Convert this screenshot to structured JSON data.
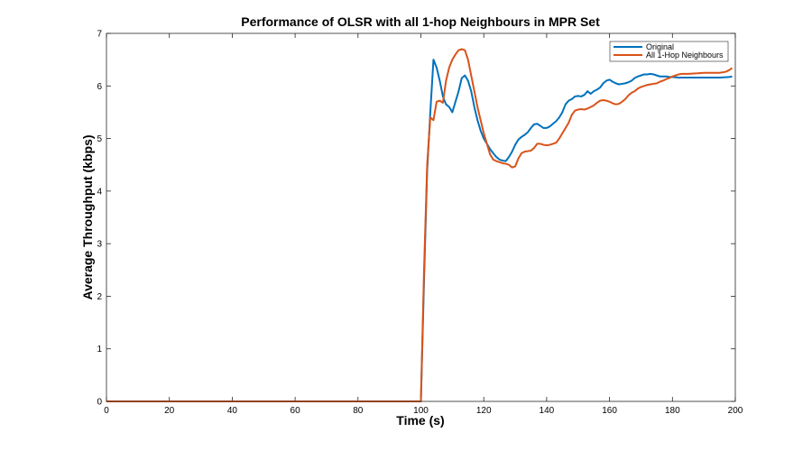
{
  "chart_data": {
    "type": "line",
    "title": "Performance of OLSR with all 1-hop Neighbours in MPR Set",
    "xlabel": "Time (s)",
    "ylabel": "Average Throughput (kbps)",
    "xlim": [
      0,
      200
    ],
    "ylim": [
      0,
      7
    ],
    "xticks": [
      0,
      20,
      40,
      60,
      80,
      100,
      120,
      140,
      160,
      180,
      200
    ],
    "yticks": [
      0,
      1,
      2,
      3,
      4,
      5,
      6,
      7
    ],
    "grid": false,
    "legend_position": "top-right",
    "series": [
      {
        "name": "Original",
        "color": "#0072BD",
        "points": [
          [
            0,
            0
          ],
          [
            100,
            0
          ],
          [
            101,
            2.3
          ],
          [
            102,
            4.4
          ],
          [
            103,
            5.5
          ],
          [
            104,
            6.5
          ],
          [
            105,
            6.35
          ],
          [
            106,
            6.1
          ],
          [
            107,
            5.8
          ],
          [
            108,
            5.65
          ],
          [
            109,
            5.6
          ],
          [
            110,
            5.5
          ],
          [
            111,
            5.7
          ],
          [
            112,
            5.9
          ],
          [
            113,
            6.15
          ],
          [
            114,
            6.2
          ],
          [
            115,
            6.1
          ],
          [
            116,
            5.9
          ],
          [
            117,
            5.6
          ],
          [
            118,
            5.35
          ],
          [
            119,
            5.15
          ],
          [
            120,
            5.0
          ],
          [
            121,
            4.9
          ],
          [
            122,
            4.8
          ],
          [
            123,
            4.72
          ],
          [
            124,
            4.65
          ],
          [
            125,
            4.6
          ],
          [
            126,
            4.58
          ],
          [
            127,
            4.57
          ],
          [
            128,
            4.65
          ],
          [
            129,
            4.75
          ],
          [
            130,
            4.88
          ],
          [
            131,
            4.98
          ],
          [
            132,
            5.03
          ],
          [
            133,
            5.07
          ],
          [
            134,
            5.12
          ],
          [
            135,
            5.2
          ],
          [
            136,
            5.27
          ],
          [
            137,
            5.28
          ],
          [
            138,
            5.24
          ],
          [
            139,
            5.2
          ],
          [
            140,
            5.2
          ],
          [
            141,
            5.23
          ],
          [
            142,
            5.28
          ],
          [
            143,
            5.33
          ],
          [
            144,
            5.4
          ],
          [
            145,
            5.5
          ],
          [
            146,
            5.65
          ],
          [
            147,
            5.72
          ],
          [
            148,
            5.75
          ],
          [
            149,
            5.8
          ],
          [
            150,
            5.81
          ],
          [
            151,
            5.8
          ],
          [
            152,
            5.83
          ],
          [
            153,
            5.9
          ],
          [
            154,
            5.85
          ],
          [
            155,
            5.9
          ],
          [
            156,
            5.93
          ],
          [
            157,
            5.97
          ],
          [
            158,
            6.05
          ],
          [
            159,
            6.1
          ],
          [
            160,
            6.12
          ],
          [
            161,
            6.08
          ],
          [
            162,
            6.05
          ],
          [
            163,
            6.03
          ],
          [
            164,
            6.04
          ],
          [
            165,
            6.05
          ],
          [
            166,
            6.07
          ],
          [
            167,
            6.1
          ],
          [
            168,
            6.15
          ],
          [
            169,
            6.18
          ],
          [
            170,
            6.2
          ],
          [
            171,
            6.22
          ],
          [
            172,
            6.22
          ],
          [
            173,
            6.23
          ],
          [
            174,
            6.22
          ],
          [
            175,
            6.2
          ],
          [
            176,
            6.18
          ],
          [
            177,
            6.18
          ],
          [
            178,
            6.18
          ],
          [
            179,
            6.17
          ],
          [
            180,
            6.17
          ],
          [
            182,
            6.16
          ],
          [
            185,
            6.16
          ],
          [
            190,
            6.16
          ],
          [
            195,
            6.16
          ],
          [
            198,
            6.17
          ],
          [
            199,
            6.18
          ]
        ]
      },
      {
        "name": "All 1-Hop Neighbours",
        "color": "#D95319",
        "points": [
          [
            0,
            0
          ],
          [
            100,
            0
          ],
          [
            101,
            2.5
          ],
          [
            102,
            4.5
          ],
          [
            103,
            5.4
          ],
          [
            104,
            5.35
          ],
          [
            105,
            5.7
          ],
          [
            106,
            5.72
          ],
          [
            107,
            5.68
          ],
          [
            108,
            6.1
          ],
          [
            109,
            6.35
          ],
          [
            110,
            6.5
          ],
          [
            111,
            6.6
          ],
          [
            112,
            6.68
          ],
          [
            113,
            6.7
          ],
          [
            114,
            6.68
          ],
          [
            115,
            6.5
          ],
          [
            116,
            6.2
          ],
          [
            117,
            5.9
          ],
          [
            118,
            5.6
          ],
          [
            119,
            5.35
          ],
          [
            120,
            5.1
          ],
          [
            121,
            4.9
          ],
          [
            122,
            4.7
          ],
          [
            123,
            4.6
          ],
          [
            124,
            4.57
          ],
          [
            125,
            4.55
          ],
          [
            126,
            4.53
          ],
          [
            127,
            4.52
          ],
          [
            128,
            4.5
          ],
          [
            129,
            4.45
          ],
          [
            130,
            4.47
          ],
          [
            131,
            4.62
          ],
          [
            132,
            4.72
          ],
          [
            133,
            4.75
          ],
          [
            134,
            4.76
          ],
          [
            135,
            4.77
          ],
          [
            136,
            4.82
          ],
          [
            137,
            4.9
          ],
          [
            138,
            4.9
          ],
          [
            139,
            4.88
          ],
          [
            140,
            4.87
          ],
          [
            141,
            4.88
          ],
          [
            142,
            4.9
          ],
          [
            143,
            4.92
          ],
          [
            144,
            5.0
          ],
          [
            145,
            5.1
          ],
          [
            146,
            5.2
          ],
          [
            147,
            5.3
          ],
          [
            148,
            5.45
          ],
          [
            149,
            5.53
          ],
          [
            150,
            5.55
          ],
          [
            151,
            5.56
          ],
          [
            152,
            5.55
          ],
          [
            153,
            5.57
          ],
          [
            154,
            5.6
          ],
          [
            155,
            5.63
          ],
          [
            156,
            5.68
          ],
          [
            157,
            5.72
          ],
          [
            158,
            5.73
          ],
          [
            159,
            5.72
          ],
          [
            160,
            5.7
          ],
          [
            161,
            5.67
          ],
          [
            162,
            5.65
          ],
          [
            163,
            5.66
          ],
          [
            164,
            5.7
          ],
          [
            165,
            5.75
          ],
          [
            166,
            5.82
          ],
          [
            167,
            5.87
          ],
          [
            168,
            5.9
          ],
          [
            169,
            5.95
          ],
          [
            170,
            5.98
          ],
          [
            171,
            6.0
          ],
          [
            172,
            6.02
          ],
          [
            173,
            6.03
          ],
          [
            174,
            6.04
          ],
          [
            175,
            6.05
          ],
          [
            176,
            6.08
          ],
          [
            177,
            6.1
          ],
          [
            178,
            6.13
          ],
          [
            179,
            6.15
          ],
          [
            180,
            6.18
          ],
          [
            181,
            6.2
          ],
          [
            182,
            6.22
          ],
          [
            183,
            6.23
          ],
          [
            185,
            6.23
          ],
          [
            188,
            6.24
          ],
          [
            190,
            6.25
          ],
          [
            192,
            6.25
          ],
          [
            195,
            6.25
          ],
          [
            197,
            6.27
          ],
          [
            198,
            6.3
          ],
          [
            199,
            6.34
          ]
        ]
      }
    ]
  }
}
